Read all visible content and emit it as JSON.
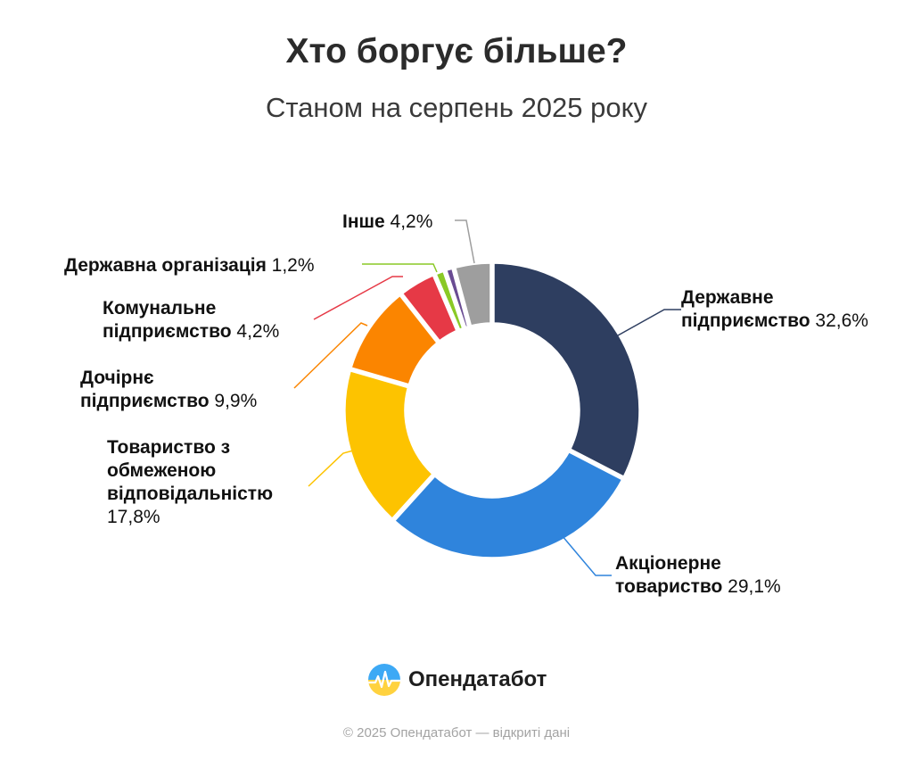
{
  "header": {
    "title": "Хто боргує більше?",
    "subtitle": "Станом на серпень 2025 року"
  },
  "chart_data": {
    "type": "pie",
    "title": "Хто боргує більше?",
    "subtitle": "Станом на серпень 2025 року",
    "slices": [
      {
        "label": "Державне підприємство",
        "value": 32.6,
        "display": "32,6%",
        "color": "#2e3e60",
        "lines": [
          "Державне",
          "підприємство"
        ]
      },
      {
        "label": "Акціонерне товариство",
        "value": 29.1,
        "display": "29,1%",
        "color": "#2f84dc",
        "lines": [
          "Акціонерне",
          "товариство"
        ]
      },
      {
        "label": "Товариство з обмеженою відповідальністю",
        "value": 17.8,
        "display": "17,8%",
        "color": "#fdc300",
        "lines": [
          "Товариство з",
          "обмеженою",
          "відповідальністю"
        ]
      },
      {
        "label": "Дочірнє підприємство",
        "value": 9.9,
        "display": "9,9%",
        "color": "#fb8500",
        "lines": [
          "Дочірнє",
          "підприємство"
        ]
      },
      {
        "label": "Комунальне підприємство",
        "value": 4.2,
        "display": "4,2%",
        "color": "#e63946",
        "lines": [
          "Комунальне",
          "підприємство"
        ]
      },
      {
        "label": "Державна організація",
        "value": 1.2,
        "display": "1,2%",
        "color": "#8ac926",
        "lines": [
          "Державна організація"
        ]
      },
      {
        "label": "",
        "value": 1.0,
        "display": "",
        "color": "#6a4c93",
        "lines": []
      },
      {
        "label": "Інше",
        "value": 4.2,
        "display": "4,2%",
        "color": "#9e9e9e",
        "lines": [
          "Інше"
        ]
      }
    ]
  },
  "brand": {
    "name": "Опендатабот",
    "icon": "opendatabot-logo-icon"
  },
  "footer": {
    "text": "© 2025 Опендатабот — відкриті дані"
  }
}
